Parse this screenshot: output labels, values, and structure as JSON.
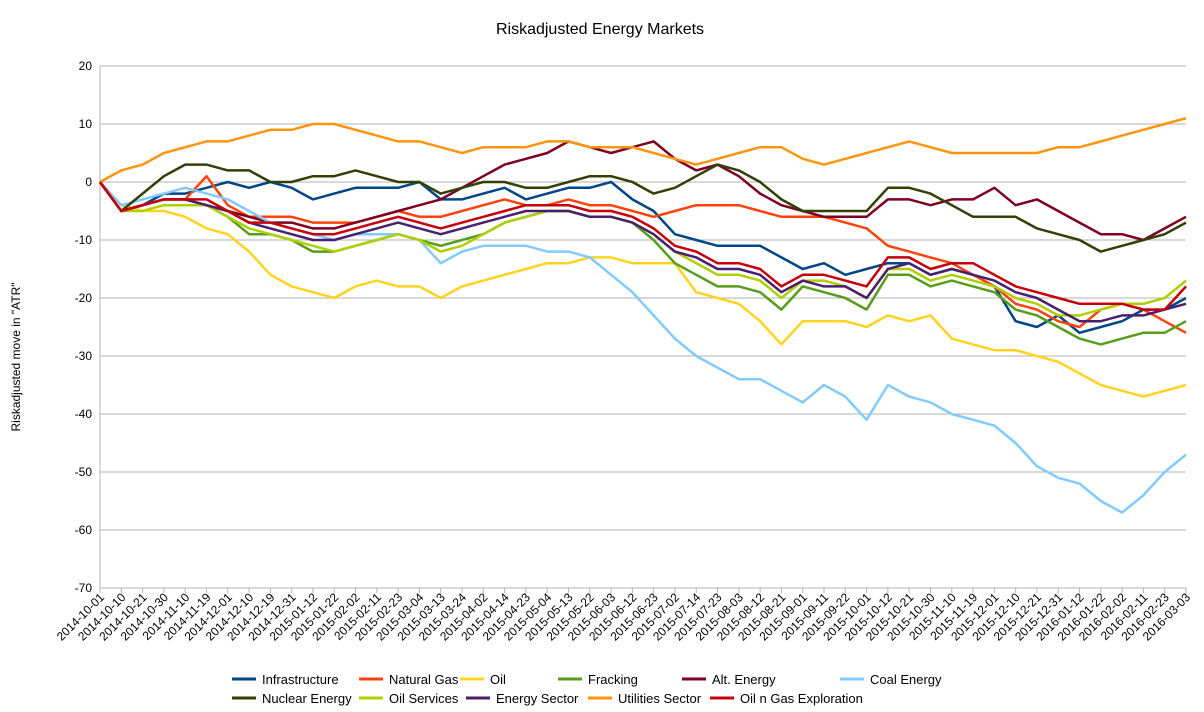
{
  "chart_data": {
    "type": "line",
    "title": "Riskadjusted Energy Markets",
    "xlabel": "",
    "ylabel": "Riskadjusted move in \"ATR\"",
    "ylim": [
      -70,
      20
    ],
    "yticks": [
      20,
      10,
      0,
      -10,
      -20,
      -30,
      -40,
      -50,
      -60,
      -70
    ],
    "grid": "horizontal",
    "legend_position": "bottom",
    "categories": [
      "2014-10-01",
      "2014-10-10",
      "2014-10-21",
      "2014-10-30",
      "2014-11-10",
      "2014-11-19",
      "2014-12-01",
      "2014-12-10",
      "2014-12-19",
      "2014-12-31",
      "2015-01-12",
      "2015-01-22",
      "2015-02-02",
      "2015-02-11",
      "2015-02-23",
      "2015-03-04",
      "2015-03-13",
      "2015-03-24",
      "2015-04-02",
      "2015-04-14",
      "2015-04-23",
      "2015-05-04",
      "2015-05-13",
      "2015-05-22",
      "2015-06-03",
      "2015-06-12",
      "2015-06-23",
      "2015-07-02",
      "2015-07-14",
      "2015-07-23",
      "2015-08-03",
      "2015-08-12",
      "2015-08-21",
      "2015-09-01",
      "2015-09-11",
      "2015-09-22",
      "2015-10-01",
      "2015-10-12",
      "2015-10-21",
      "2015-10-30",
      "2015-11-10",
      "2015-11-19",
      "2015-12-01",
      "2015-12-10",
      "2015-12-21",
      "2015-12-31",
      "2016-01-12",
      "2016-01-22",
      "2016-02-02",
      "2016-02-11",
      "2016-02-23",
      "2016-03-03"
    ],
    "series": [
      {
        "name": "Infrastructure",
        "color": "#004586",
        "values": [
          0,
          -5,
          -4,
          -2,
          -2,
          -1,
          0,
          -1,
          0,
          -1,
          -3,
          -2,
          -1,
          -1,
          -1,
          0,
          -3,
          -3,
          -2,
          -1,
          -3,
          -2,
          -1,
          -1,
          0,
          -3,
          -5,
          -9,
          -10,
          -11,
          -11,
          -11,
          -13,
          -15,
          -14,
          -16,
          -15,
          -14,
          -14,
          -16,
          -15,
          -16,
          -18,
          -24,
          -25,
          -23,
          -26,
          -25,
          -24,
          -22,
          -22,
          -20
        ]
      },
      {
        "name": "Natural Gas",
        "color": "#ff420e",
        "values": [
          0,
          -5,
          -4,
          -3,
          -3,
          1,
          -4,
          -6,
          -6,
          -6,
          -7,
          -7,
          -7,
          -6,
          -5,
          -6,
          -6,
          -5,
          -4,
          -3,
          -4,
          -4,
          -3,
          -4,
          -4,
          -5,
          -6,
          -5,
          -4,
          -4,
          -4,
          -5,
          -6,
          -6,
          -6,
          -7,
          -8,
          -11,
          -12,
          -13,
          -14,
          -16,
          -18,
          -21,
          -22,
          -24,
          -25,
          -22,
          -21,
          -22,
          -24,
          -26
        ]
      },
      {
        "name": "Oil",
        "color": "#ffd320",
        "values": [
          0,
          -4,
          -5,
          -5,
          -6,
          -8,
          -9,
          -12,
          -16,
          -18,
          -19,
          -20,
          -18,
          -17,
          -18,
          -18,
          -20,
          -18,
          -17,
          -16,
          -15,
          -14,
          -14,
          -13,
          -13,
          -14,
          -14,
          -14,
          -19,
          -20,
          -21,
          -24,
          -28,
          -24,
          -24,
          -24,
          -25,
          -23,
          -24,
          -23,
          -27,
          -28,
          -29,
          -29,
          -30,
          -31,
          -33,
          -35,
          -36,
          -37,
          -36,
          -35
        ]
      },
      {
        "name": "Fracking",
        "color": "#579d1c",
        "values": [
          0,
          -5,
          -4,
          -3,
          -3,
          -4,
          -6,
          -9,
          -9,
          -10,
          -12,
          -12,
          -11,
          -10,
          -9,
          -10,
          -11,
          -10,
          -9,
          -7,
          -6,
          -5,
          -5,
          -6,
          -6,
          -7,
          -10,
          -14,
          -16,
          -18,
          -18,
          -19,
          -22,
          -18,
          -19,
          -20,
          -22,
          -16,
          -16,
          -18,
          -17,
          -18,
          -19,
          -22,
          -23,
          -25,
          -27,
          -28,
          -27,
          -26,
          -26,
          -24
        ]
      },
      {
        "name": "Alt. Energy",
        "color": "#7e0021",
        "values": [
          0,
          -5,
          -4,
          -3,
          -3,
          -4,
          -5,
          -6,
          -7,
          -7,
          -8,
          -8,
          -7,
          -6,
          -5,
          -4,
          -3,
          -1,
          1,
          3,
          4,
          5,
          7,
          6,
          5,
          6,
          7,
          4,
          2,
          3,
          1,
          -2,
          -4,
          -5,
          -6,
          -6,
          -6,
          -3,
          -3,
          -4,
          -3,
          -3,
          -1,
          -4,
          -3,
          -5,
          -7,
          -9,
          -9,
          -10,
          -8,
          -6
        ]
      },
      {
        "name": "Coal Energy",
        "color": "#83caff",
        "values": [
          0,
          -4,
          -3,
          -2,
          -1,
          -2,
          -3,
          -5,
          -7,
          -8,
          -9,
          -10,
          -9,
          -9,
          -9,
          -10,
          -14,
          -12,
          -11,
          -11,
          -11,
          -12,
          -12,
          -13,
          -16,
          -19,
          -23,
          -27,
          -30,
          -32,
          -34,
          -34,
          -36,
          -38,
          -35,
          -37,
          -41,
          -35,
          -37,
          -38,
          -40,
          -41,
          -42,
          -45,
          -49,
          -51,
          -52,
          -55,
          -57,
          -54,
          -50,
          -47
        ]
      },
      {
        "name": "Nuclear Energy",
        "color": "#314004",
        "values": [
          0,
          -5,
          -2,
          1,
          3,
          3,
          2,
          2,
          0,
          0,
          1,
          1,
          2,
          1,
          0,
          0,
          -2,
          -1,
          0,
          0,
          -1,
          -1,
          0,
          1,
          1,
          0,
          -2,
          -1,
          1,
          3,
          2,
          0,
          -3,
          -5,
          -5,
          -5,
          -5,
          -1,
          -1,
          -2,
          -4,
          -6,
          -6,
          -6,
          -8,
          -9,
          -10,
          -12,
          -11,
          -10,
          -9,
          -7
        ]
      },
      {
        "name": "Oil Services",
        "color": "#aecf00",
        "values": [
          0,
          -5,
          -5,
          -4,
          -4,
          -4,
          -6,
          -8,
          -9,
          -10,
          -11,
          -12,
          -11,
          -10,
          -9,
          -10,
          -12,
          -11,
          -9,
          -7,
          -6,
          -5,
          -5,
          -6,
          -6,
          -7,
          -9,
          -12,
          -14,
          -16,
          -16,
          -17,
          -20,
          -17,
          -17,
          -18,
          -20,
          -15,
          -15,
          -17,
          -16,
          -17,
          -18,
          -20,
          -21,
          -23,
          -23,
          -22,
          -21,
          -21,
          -20,
          -17
        ]
      },
      {
        "name": "Energy Sector",
        "color": "#4b1f6f",
        "values": [
          0,
          -5,
          -4,
          -3,
          -3,
          -4,
          -5,
          -7,
          -8,
          -9,
          -10,
          -10,
          -9,
          -8,
          -7,
          -8,
          -9,
          -8,
          -7,
          -6,
          -5,
          -5,
          -5,
          -6,
          -6,
          -7,
          -9,
          -12,
          -13,
          -15,
          -15,
          -16,
          -19,
          -17,
          -18,
          -18,
          -20,
          -15,
          -14,
          -16,
          -15,
          -16,
          -17,
          -19,
          -20,
          -22,
          -24,
          -24,
          -23,
          -23,
          -22,
          -21
        ]
      },
      {
        "name": "Utilities Sector",
        "color": "#ff950e",
        "values": [
          0,
          2,
          3,
          5,
          6,
          7,
          7,
          8,
          9,
          9,
          10,
          10,
          9,
          8,
          7,
          7,
          6,
          5,
          6,
          6,
          6,
          7,
          7,
          6,
          6,
          6,
          5,
          4,
          3,
          4,
          5,
          6,
          6,
          4,
          3,
          4,
          5,
          6,
          7,
          6,
          5,
          5,
          5,
          5,
          5,
          6,
          6,
          7,
          8,
          9,
          10,
          11
        ]
      },
      {
        "name": "Oil n Gas Exploration",
        "color": "#c5000b",
        "values": [
          0,
          -5,
          -4,
          -3,
          -3,
          -3,
          -5,
          -7,
          -7,
          -8,
          -9,
          -9,
          -8,
          -7,
          -6,
          -7,
          -8,
          -7,
          -6,
          -5,
          -4,
          -4,
          -4,
          -5,
          -5,
          -6,
          -8,
          -11,
          -12,
          -14,
          -14,
          -15,
          -18,
          -16,
          -16,
          -17,
          -18,
          -13,
          -13,
          -15,
          -14,
          -14,
          -16,
          -18,
          -19,
          -20,
          -21,
          -21,
          -21,
          -22,
          -22,
          -18
        ]
      }
    ]
  }
}
